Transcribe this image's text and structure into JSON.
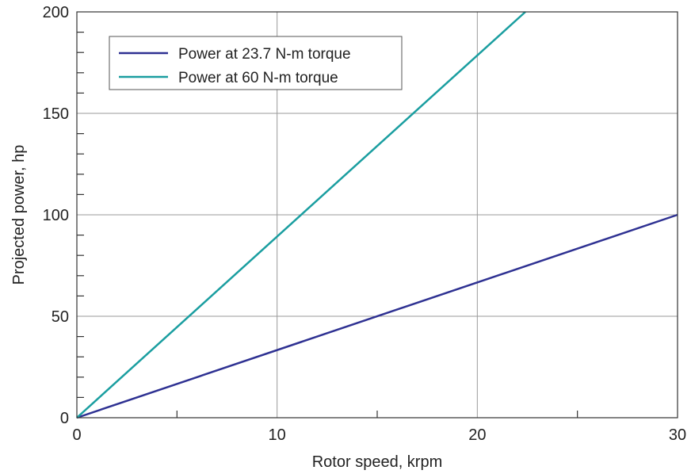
{
  "chart_data": {
    "type": "line",
    "xlabel": "Rotor speed, krpm",
    "ylabel": "Projected power, hp",
    "xlim": [
      0,
      30
    ],
    "ylim": [
      0,
      200
    ],
    "x_ticks": [
      0,
      10,
      20,
      30
    ],
    "y_ticks": [
      0,
      50,
      100,
      150,
      200
    ],
    "x_minor_step": 5,
    "y_minor_step": 10,
    "grid": true,
    "legend_position": "top-left",
    "series": [
      {
        "name": "Power at 23.7 N-m torque",
        "color": "#2e3192",
        "x": [
          0,
          30
        ],
        "y": [
          0,
          100
        ]
      },
      {
        "name": "Power at 60 N-m torque",
        "color": "#1a9ea0",
        "x": [
          0,
          22.4
        ],
        "y": [
          0,
          200
        ]
      }
    ]
  }
}
